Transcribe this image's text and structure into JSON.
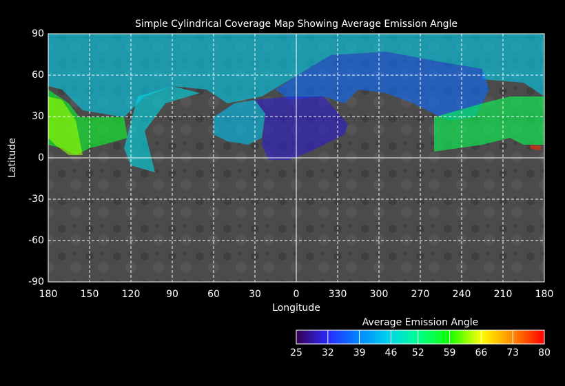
{
  "chart_data": {
    "type": "map",
    "title": "Simple Cylindrical Coverage Map Showing Average Emission Angle",
    "x_label": "Longitude",
    "y_label": "Latitude",
    "xlim": [
      180,
      -180
    ],
    "xticks": [
      180,
      150,
      120,
      90,
      60,
      30,
      0,
      {
        "value": -30,
        "label": "330"
      },
      {
        "value": -60,
        "label": "300"
      },
      {
        "value": -90,
        "label": "270"
      },
      {
        "value": -120,
        "label": "240"
      },
      {
        "value": -150,
        "label": "210"
      },
      {
        "value": -180,
        "label": "180"
      }
    ],
    "ylim": [
      -90,
      90
    ],
    "yticks": [
      -90,
      -60,
      -30,
      0,
      30,
      60,
      90
    ],
    "grid": true,
    "coverage": [
      45,
      37,
      30,
      44,
      46,
      55,
      57,
      63,
      78
    ],
    "colorbar": {
      "title": "Average Emission Angle",
      "lim": [
        25,
        80
      ],
      "ticks": [
        25,
        32,
        39,
        46,
        52,
        59,
        66,
        73,
        80
      ],
      "colormap": [
        "#3a0050",
        "#2828ff",
        "#0088ff",
        "#00d8e8",
        "#00ff90",
        "#10ff00",
        "#ffff00",
        "#ff8800",
        "#ff0000"
      ]
    }
  }
}
